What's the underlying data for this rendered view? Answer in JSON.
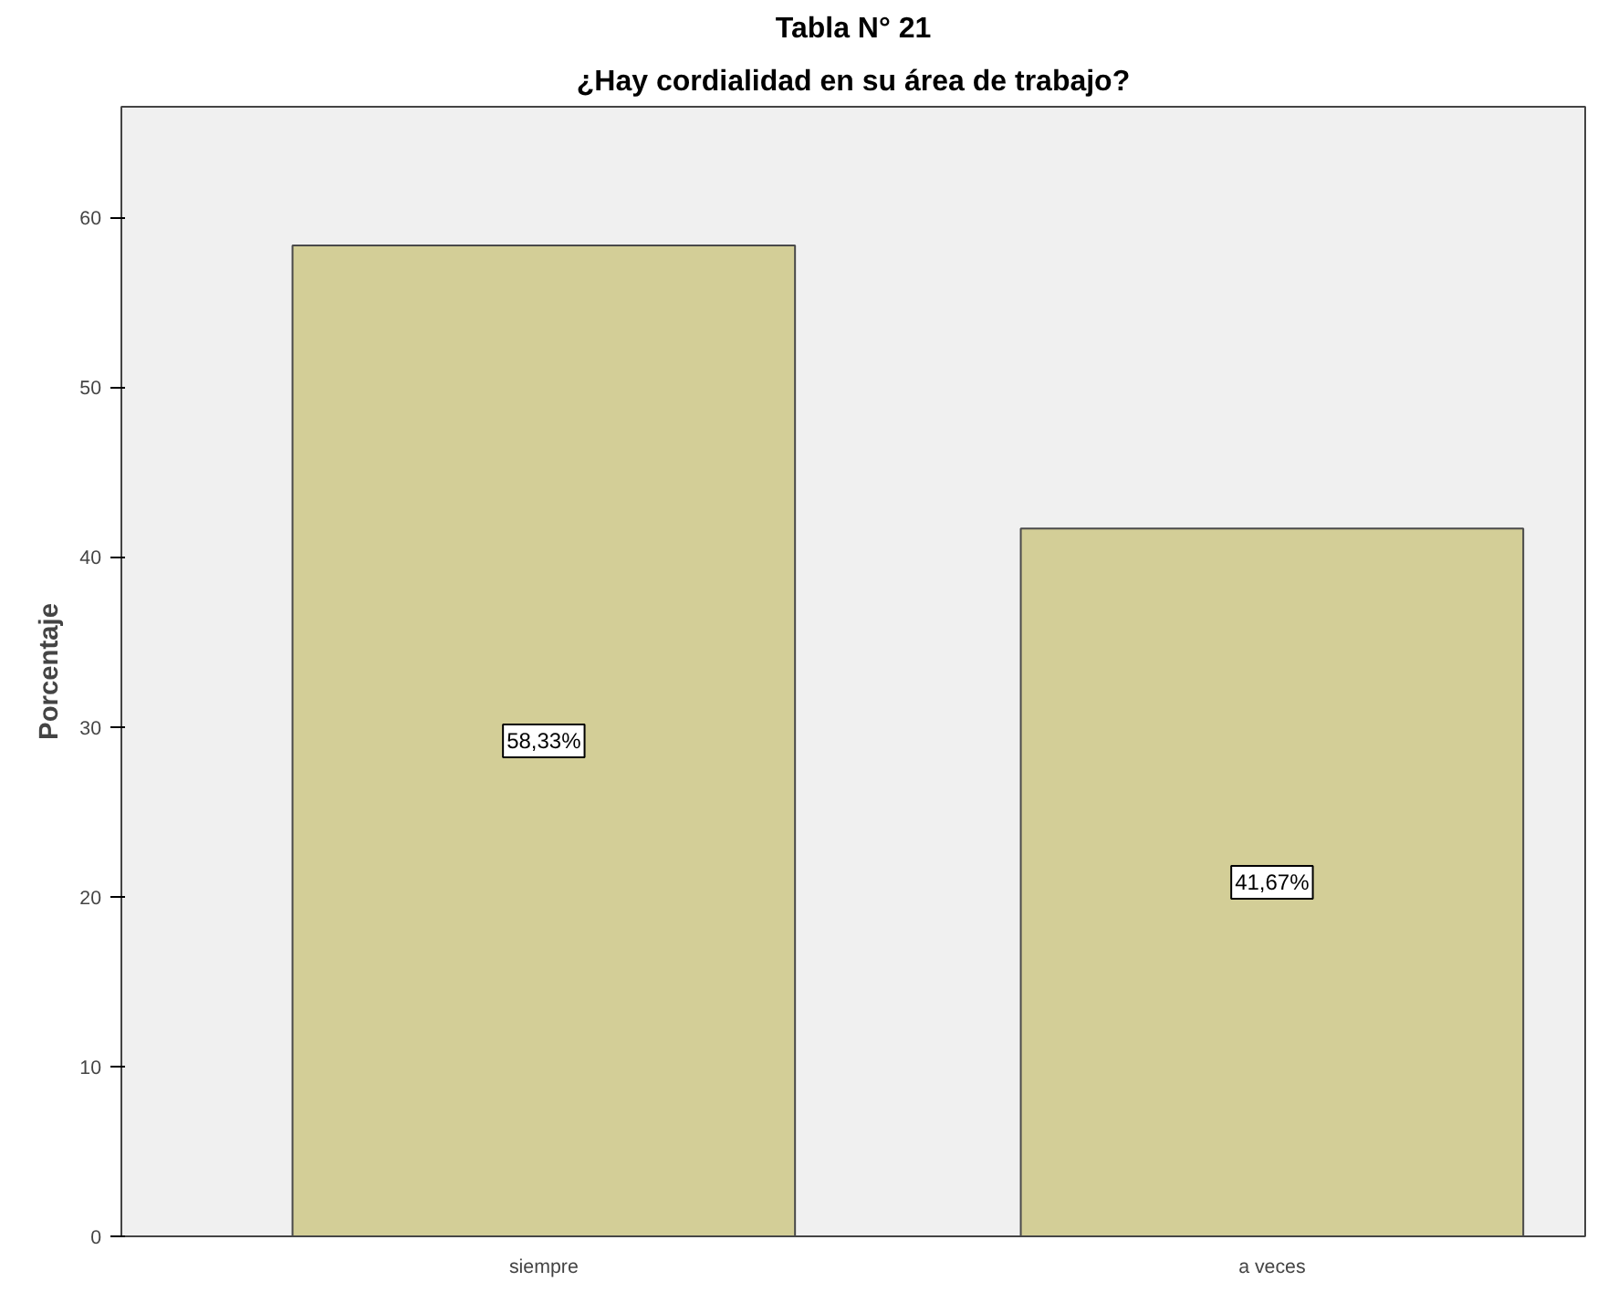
{
  "chart_data": {
    "type": "bar",
    "title": "Tabla N° 21",
    "subtitle": "¿Hay cordialidad en su área de trabajo?",
    "ylabel": "Porcentaje",
    "categories": [
      "siempre",
      "a veces"
    ],
    "values": [
      58.33,
      41.67
    ],
    "value_labels": [
      "58,33%",
      "41,67%"
    ],
    "color": "#d3ce97",
    "ylim": [
      0,
      66.5
    ],
    "yticks": [
      0,
      10,
      20,
      30,
      40,
      50,
      60
    ],
    "grid": false
  }
}
